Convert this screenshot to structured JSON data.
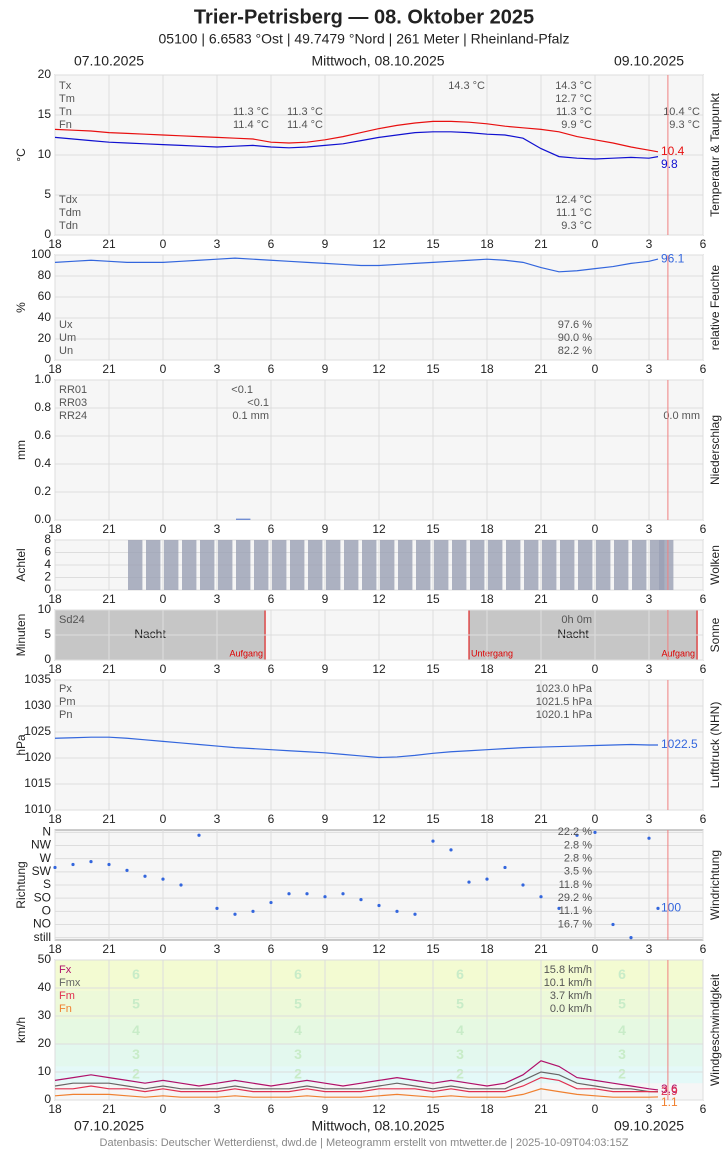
{
  "header": {
    "title": "Trier-Petrisberg — 08. Oktober 2025",
    "subtitle": "05100 | 6.6583 °Ost | 49.7479 °Nord | 261 Meter | Rheinland-Pfalz",
    "dates": [
      "07.10.2025",
      "Mittwoch, 08.10.2025",
      "09.10.2025"
    ]
  },
  "footer": "Datenbasis: Deutscher Wetterdienst, dwd.de | Meteogramm erstellt von mtwetter.de | 2025-10-09T04:03:15Z",
  "time": {
    "xlim": [
      0,
      36
    ],
    "xticks": [
      {
        "value": 0,
        "label": "18"
      },
      {
        "value": 3,
        "label": "21"
      },
      {
        "value": 6,
        "label": "0"
      },
      {
        "value": 9,
        "label": "3"
      },
      {
        "value": 12,
        "label": "6"
      },
      {
        "value": 15,
        "label": "9"
      },
      {
        "value": 18,
        "label": "12"
      },
      {
        "value": 21,
        "label": "15"
      },
      {
        "value": 24,
        "label": "18"
      },
      {
        "value": 27,
        "label": "21"
      },
      {
        "value": 30,
        "label": "0"
      },
      {
        "value": 33,
        "label": "3"
      },
      {
        "value": 36,
        "label": "6"
      }
    ],
    "x": [
      0,
      1,
      2,
      3,
      4,
      5,
      6,
      7,
      8,
      9,
      10,
      11,
      12,
      13,
      14,
      15,
      16,
      17,
      18,
      19,
      20,
      21,
      22,
      23,
      24,
      25,
      26,
      27,
      28,
      29,
      30,
      31,
      32,
      33,
      33.5
    ],
    "now": 34.05
  },
  "chart_data": [
    {
      "type": "line",
      "ylabel": "°C",
      "side_title": "Temperatur & Taupunkt",
      "ylim": [
        0,
        20
      ],
      "yticks": [
        0,
        5,
        10,
        15,
        20
      ],
      "grid": true,
      "series": [
        {
          "color": "#e81010",
          "label_last": true,
          "values": [
            13.2,
            13.1,
            13.0,
            12.8,
            12.7,
            12.6,
            12.5,
            12.4,
            12.3,
            12.2,
            12.1,
            12.0,
            11.6,
            11.5,
            11.6,
            11.9,
            12.3,
            12.8,
            13.3,
            13.7,
            14.0,
            14.2,
            14.2,
            14.1,
            13.9,
            13.6,
            13.4,
            13.2,
            12.9,
            12.3,
            11.9,
            11.5,
            11.0,
            10.6,
            10.4
          ]
        },
        {
          "color": "#1010d0",
          "label_last": true,
          "values": [
            12.2,
            12.0,
            11.8,
            11.6,
            11.5,
            11.4,
            11.3,
            11.2,
            11.1,
            11.0,
            11.1,
            11.2,
            11.0,
            10.9,
            11.0,
            11.2,
            11.4,
            11.8,
            12.2,
            12.5,
            12.8,
            12.9,
            12.9,
            12.8,
            12.6,
            12.5,
            12.1,
            10.8,
            9.8,
            9.6,
            9.5,
            9.6,
            9.7,
            9.6,
            9.8
          ]
        }
      ],
      "stats": [
        {
          "labels": [
            "Tx",
            "Tm",
            "Tn",
            "Fn"
          ],
          "columns": [
            [
              null,
              null,
              "11.3 °C",
              "11.4 °C"
            ],
            [
              null,
              null,
              "11.3 °C",
              "11.4 °C"
            ],
            [
              "14.3 °C",
              null,
              null,
              null
            ],
            [
              "14.3 °C",
              "12.7 °C",
              "11.3 °C",
              "9.9 °C"
            ],
            [
              null,
              null,
              "10.4 °C",
              "9.3 °C"
            ]
          ]
        },
        {
          "labels": [
            "Tdx",
            "Tdm",
            "Tdn"
          ],
          "columns": [
            [
              "12.4 °C",
              "11.1 °C",
              "9.3 °C"
            ]
          ]
        }
      ]
    },
    {
      "type": "line",
      "ylabel": "%",
      "side_title": "relative Feuchte",
      "ylim": [
        0,
        100
      ],
      "yticks": [
        0,
        20,
        40,
        60,
        80,
        100
      ],
      "grid": true,
      "series": [
        {
          "color": "#3366dd",
          "label_last": true,
          "values": [
            93,
            94,
            95,
            94,
            93,
            93,
            93,
            94,
            95,
            96,
            97,
            96,
            95,
            94,
            93,
            92,
            91,
            90,
            90,
            91,
            92,
            93,
            94,
            95,
            96,
            95,
            93,
            88,
            84,
            85,
            87,
            89,
            92,
            94,
            96.1
          ]
        }
      ],
      "stats": [
        {
          "labels": [
            "Ux",
            "Um",
            "Un"
          ],
          "columns": [
            [
              "97.6 %",
              "90.0 %",
              "82.2 %"
            ]
          ]
        }
      ]
    },
    {
      "type": "bar",
      "ylabel": "mm",
      "side_title": "Niederschlag",
      "ylim": [
        0,
        1
      ],
      "yticks": [
        {
          "value": 0,
          "label": "0.0"
        },
        0.2,
        0.4,
        0.6,
        0.8,
        {
          "value": 1,
          "label": "1.0"
        }
      ],
      "grid": true,
      "series": [
        {
          "color": "#5577cc",
          "values": [
            0,
            0,
            0,
            0,
            0,
            0,
            0,
            0,
            0,
            0,
            0.01,
            0,
            0,
            0,
            0,
            0,
            0,
            0,
            0,
            0,
            0,
            0,
            0,
            0,
            0,
            0,
            0,
            0,
            0,
            0,
            0,
            0,
            0,
            0,
            0
          ]
        }
      ],
      "stats": [
        {
          "labels": [
            "RR01",
            "RR03",
            "RR24"
          ],
          "columns": [
            [
              "<0.1",
              null,
              null
            ],
            [
              null,
              "<0.1",
              "0.1 mm"
            ],
            [
              null,
              null,
              "0.0 mm"
            ]
          ]
        }
      ]
    },
    {
      "type": "bar",
      "ylabel": "Achtel",
      "side_title": "Wolken",
      "ylim": [
        0,
        8
      ],
      "yticks": [
        0,
        2,
        4,
        6,
        8
      ],
      "grid": true,
      "series": [
        {
          "color": "#9aa0b4",
          "values": [
            0,
            0,
            0,
            0,
            8,
            8,
            8,
            8,
            8,
            8,
            8,
            8,
            8,
            8,
            8,
            8,
            8,
            8,
            8,
            8,
            8,
            8,
            8,
            8,
            8,
            8,
            8,
            8,
            8,
            8,
            8,
            8,
            8,
            8,
            8
          ]
        }
      ]
    },
    {
      "type": "bar",
      "ylabel": "Minuten",
      "side_title": "Sonne",
      "ylim": [
        0,
        10
      ],
      "yticks": [
        0,
        5,
        10
      ],
      "grid": true,
      "series": [
        {
          "color": "#f0c020",
          "values": [
            0,
            0,
            0,
            0,
            0,
            0,
            0,
            0,
            0,
            0,
            0,
            0,
            0,
            0,
            0,
            0,
            0,
            0,
            0,
            0,
            0,
            0,
            0,
            0,
            0,
            0,
            0,
            0,
            0,
            0,
            0,
            0,
            0,
            0,
            0
          ]
        }
      ],
      "night": [
        [
          0,
          11.67
        ],
        [
          23.0,
          35.67
        ]
      ],
      "sunrise": [
        11.67,
        35.67
      ],
      "sunset": [
        23.0
      ],
      "night_label": "Nacht",
      "sunrise_label": "Aufgang",
      "sunset_label": "Untergang",
      "stats": [
        {
          "labels": [
            "Sd24"
          ],
          "columns": [
            [
              "0h 0m"
            ]
          ]
        }
      ]
    },
    {
      "type": "line",
      "ylabel": "hPa",
      "side_title": "Luftdruck (NHN)",
      "ylim": [
        1010,
        1035
      ],
      "yticks": [
        1010,
        1015,
        1020,
        1025,
        1030,
        1035
      ],
      "grid": true,
      "series": [
        {
          "color": "#3366dd",
          "label_last": true,
          "values": [
            1023.8,
            1023.9,
            1024.0,
            1024.0,
            1023.8,
            1023.5,
            1023.2,
            1022.9,
            1022.6,
            1022.3,
            1022.0,
            1021.8,
            1021.6,
            1021.4,
            1021.2,
            1021.0,
            1020.7,
            1020.4,
            1020.1,
            1020.2,
            1020.5,
            1020.9,
            1021.2,
            1021.4,
            1021.6,
            1021.8,
            1022.0,
            1022.1,
            1022.2,
            1022.3,
            1022.4,
            1022.5,
            1022.6,
            1022.5,
            1022.5
          ]
        }
      ],
      "stats": [
        {
          "labels": [
            "Px",
            "Pm",
            "Pn"
          ],
          "columns": [
            [
              "1023.0 hPa",
              "1021.5 hPa",
              "1020.1 hPa"
            ]
          ]
        }
      ]
    },
    {
      "type": "scatter",
      "ylabel": "Richtung",
      "side_title": "Windrichtung",
      "ylim": [
        -8,
        368
      ],
      "yticks": [
        {
          "value": 360,
          "label": "N"
        },
        {
          "value": 315,
          "label": "NW"
        },
        {
          "value": 270,
          "label": "W"
        },
        {
          "value": 225,
          "label": "SW"
        },
        {
          "value": 180,
          "label": "S"
        },
        {
          "value": 135,
          "label": "SO"
        },
        {
          "value": 90,
          "label": "O"
        },
        {
          "value": 45,
          "label": "NO"
        },
        {
          "value": 0,
          "label": "still"
        }
      ],
      "grid": true,
      "series": [
        {
          "color": "#3366dd",
          "label_last": true,
          "values": [
            240,
            250,
            260,
            250,
            230,
            210,
            200,
            180,
            350,
            100,
            80,
            90,
            120,
            150,
            150,
            140,
            150,
            130,
            110,
            90,
            80,
            330,
            300,
            190,
            200,
            240,
            180,
            140,
            100,
            350,
            360,
            45,
            0,
            340,
            100
          ]
        }
      ],
      "shares": [
        "22.2 %",
        "2.8 %",
        "2.8 %",
        "3.5 %",
        "11.8 %",
        "29.2 %",
        "11.1 %",
        "16.7 %"
      ]
    },
    {
      "type": "line",
      "ylabel": "km/h",
      "side_title": "Windgeschwindigkeit",
      "ylim": [
        0,
        50
      ],
      "yticks": [
        0,
        10,
        20,
        30,
        40,
        50
      ],
      "grid": true,
      "bands": [
        {
          "label": "2",
          "from": 6,
          "to": 12,
          "color": "#e4f9f8"
        },
        {
          "label": "3",
          "from": 12,
          "to": 20,
          "color": "#e3f8ee"
        },
        {
          "label": "4",
          "from": 20,
          "to": 29,
          "color": "#e6f9e2"
        },
        {
          "label": "5",
          "from": 29,
          "to": 39,
          "color": "#edf9d9"
        },
        {
          "label": "6",
          "from": 39,
          "to": 50,
          "color": "#f3fbd2"
        }
      ],
      "series": [
        {
          "color": "#b0106a",
          "label_last": true,
          "values": [
            7,
            8,
            9,
            8,
            7,
            6,
            7,
            6,
            5,
            6,
            7,
            6,
            5,
            6,
            7,
            6,
            5,
            6,
            7,
            8,
            7,
            6,
            7,
            6,
            5,
            6,
            9,
            14,
            12,
            8,
            7,
            6,
            5,
            4,
            3.6
          ]
        },
        {
          "color": "#666666",
          "values": [
            5,
            6,
            6,
            6,
            5,
            4,
            5,
            4,
            4,
            4,
            5,
            4,
            4,
            4,
            5,
            4,
            4,
            4,
            5,
            6,
            5,
            4,
            5,
            4,
            4,
            4,
            7,
            10,
            9,
            6,
            5,
            4,
            4,
            3,
            3.0
          ]
        },
        {
          "color": "#e03050",
          "label_last": true,
          "values": [
            4,
            4,
            5,
            4,
            4,
            3,
            4,
            3,
            3,
            3,
            4,
            3,
            3,
            3,
            4,
            3,
            3,
            3,
            4,
            4,
            4,
            3,
            4,
            3,
            3,
            3,
            5,
            8,
            7,
            4,
            4,
            3,
            3,
            3,
            2.9
          ]
        },
        {
          "color": "#f08030",
          "label_last": true,
          "values": [
            1.5,
            2,
            2,
            2,
            1.5,
            1,
            1.5,
            1,
            1,
            1,
            1.5,
            1,
            1,
            1,
            1.5,
            1,
            1,
            1,
            1.5,
            2,
            1.5,
            1,
            1.5,
            1,
            1,
            1,
            2,
            4,
            3,
            2,
            1.5,
            1,
            1,
            1,
            1.1
          ]
        }
      ],
      "stats": [
        {
          "colored": true,
          "labels": [
            "Fx",
            "Fmx",
            "Fm",
            "Fn"
          ],
          "columns": [
            [
              "15.8 km/h",
              "10.1 km/h",
              "3.7 km/h",
              "0.0 km/h"
            ]
          ]
        }
      ]
    }
  ]
}
